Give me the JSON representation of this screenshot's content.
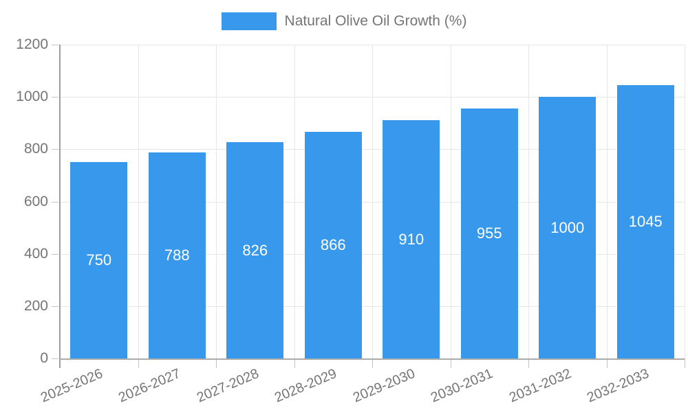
{
  "legend": {
    "label": "Natural Olive Oil Growth (%)"
  },
  "colors": {
    "bar": "#3899ec",
    "bar_label": "#ffffff",
    "grid": "#e6e6e6",
    "axis": "#9e9e9e",
    "tick": "#c4c4c4",
    "tick_text": "#757575",
    "legend_text": "#757575",
    "background": "#ffffff"
  },
  "chart_data": {
    "type": "bar",
    "title": "Natural Olive Oil Growth (%)",
    "categories": [
      "2025-2026",
      "2026-2027",
      "2027-2028",
      "2028-2029",
      "2029-2030",
      "2030-2031",
      "2031-2032",
      "2032-2033"
    ],
    "values": [
      750,
      788,
      826,
      866,
      910,
      955,
      1000,
      1045
    ],
    "bar_labels": [
      750,
      788,
      826,
      866,
      910,
      955,
      1000,
      1045
    ],
    "xlabel": "",
    "ylabel": "",
    "ylim": [
      0,
      1200
    ],
    "y_ticks": [
      0,
      200,
      400,
      600,
      800,
      1000,
      1200
    ],
    "grid": true,
    "legend_position": "top"
  }
}
